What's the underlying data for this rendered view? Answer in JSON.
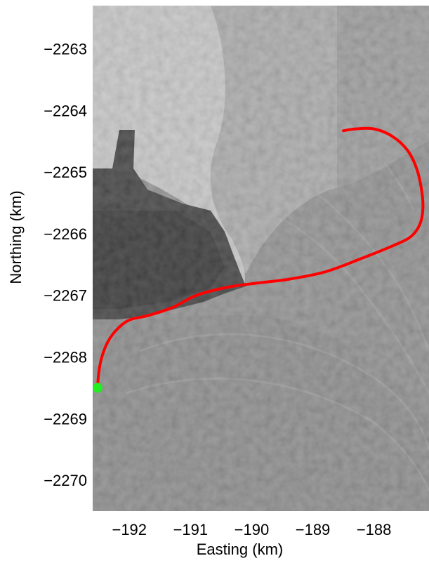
{
  "chart_data": {
    "type": "line",
    "title": "",
    "xlabel": "Easting (km)",
    "ylabel": "Northing (km)",
    "xlim": [
      -192.6,
      -187.1
    ],
    "ylim": [
      -2270.5,
      -2262.3
    ],
    "xticks": [
      -192,
      -191,
      -190,
      -189,
      -188
    ],
    "yticks": [
      -2263,
      -2264,
      -2265,
      -2266,
      -2267,
      -2268,
      -2269,
      -2270
    ],
    "xtick_labels": [
      "−192",
      "−191",
      "−190",
      "−189",
      "−188"
    ],
    "ytick_labels": [
      "−2263",
      "−2264",
      "−2265",
      "−2266",
      "−2267",
      "−2268",
      "−2269",
      "−2270"
    ],
    "grid": false,
    "background": "grayscale satellite image",
    "series": [
      {
        "color": "#ff0000",
        "x": [
          -188.5,
          -188.3,
          -188.0,
          -187.7,
          -187.45,
          -187.3,
          -187.22,
          -187.2,
          -187.25,
          -187.4,
          -187.7,
          -188.2,
          -188.8,
          -189.4,
          -189.9,
          -190.4,
          -190.9,
          -191.3,
          -191.7,
          -192.0,
          -192.2,
          -192.35,
          -192.45,
          -192.5,
          -192.52
        ],
        "y": [
          -2264.33,
          -2264.3,
          -2264.3,
          -2264.42,
          -2264.65,
          -2264.95,
          -2265.3,
          -2265.6,
          -2265.85,
          -2266.05,
          -2266.2,
          -2266.4,
          -2266.62,
          -2266.74,
          -2266.8,
          -2266.87,
          -2267.0,
          -2267.2,
          -2267.33,
          -2267.4,
          -2267.55,
          -2267.75,
          -2268.0,
          -2268.25,
          -2268.5
        ]
      }
    ],
    "marker": {
      "color": "#22ee22",
      "x": -192.52,
      "y": -2268.5
    }
  }
}
